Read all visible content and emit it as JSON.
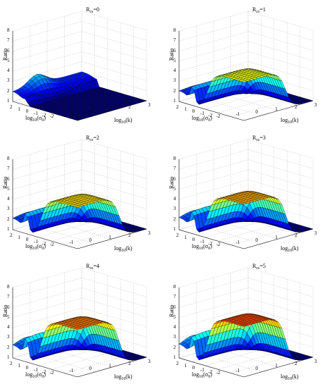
{
  "chart_data": [
    {
      "type": "surface",
      "title": "R_cs=0",
      "title_base": "R",
      "title_sub": "cs",
      "title_value": "=0",
      "cs": 0,
      "zlabel": "Ratio",
      "xlabel_base": "log",
      "xlabel_sub": "10",
      "xlabel_arg": "(σ",
      "xlabel_arg_sub": "0",
      "xlabel_end": ")",
      "klabel_base": "log",
      "klabel_sub": "10",
      "klabel_arg": "(k)",
      "zticks": [
        "1",
        "2",
        "3",
        "4",
        "5",
        "6",
        "7",
        "8"
      ],
      "sigma_ticks": [
        "2",
        "1",
        "0",
        "-1",
        "-2"
      ],
      "k_ticks": [
        "-2",
        "-1",
        "0",
        "1",
        "2",
        "3"
      ],
      "zlim": [
        1,
        8
      ],
      "sigma_lim": [
        -2,
        2
      ],
      "k_lim": [
        -2,
        3
      ],
      "grid": true,
      "colormap": "jet"
    },
    {
      "type": "surface",
      "title": "R_cs=1",
      "title_base": "R",
      "title_sub": "cs",
      "title_value": "=1",
      "cs": 1,
      "zlabel": "Ratio",
      "xlabel_base": "log",
      "xlabel_sub": "10",
      "xlabel_arg": "(σ",
      "xlabel_arg_sub": "0",
      "xlabel_end": ")",
      "klabel_base": "log",
      "klabel_sub": "10",
      "klabel_arg": "(k)",
      "zticks": [
        "1",
        "2",
        "3",
        "4",
        "5",
        "6",
        "7",
        "8"
      ],
      "sigma_ticks": [
        "2",
        "1",
        "0",
        "-1",
        "-2"
      ],
      "k_ticks": [
        "-2",
        "-1",
        "0",
        "1",
        "2",
        "3"
      ],
      "zlim": [
        1,
        8
      ],
      "sigma_lim": [
        -2,
        2
      ],
      "k_lim": [
        -2,
        3
      ],
      "grid": true,
      "colormap": "jet"
    },
    {
      "type": "surface",
      "title": "R_cs=2",
      "title_base": "R",
      "title_sub": "cs",
      "title_value": "=2",
      "cs": 2,
      "zlabel": "Ratio",
      "xlabel_base": "log",
      "xlabel_sub": "10",
      "xlabel_arg": "(σ",
      "xlabel_arg_sub": "0",
      "xlabel_end": ")",
      "klabel_base": "log",
      "klabel_sub": "10",
      "klabel_arg": "(k)",
      "zticks": [
        "1",
        "2",
        "3",
        "4",
        "5",
        "6",
        "7",
        "8"
      ],
      "sigma_ticks": [
        "2",
        "1",
        "0",
        "-1",
        "-2"
      ],
      "k_ticks": [
        "-2",
        "-1",
        "0",
        "1",
        "2",
        "3"
      ],
      "zlim": [
        1,
        8
      ],
      "sigma_lim": [
        -2,
        2
      ],
      "k_lim": [
        -2,
        3
      ],
      "grid": true,
      "colormap": "jet"
    },
    {
      "type": "surface",
      "title": "R_cs=3",
      "title_base": "R",
      "title_sub": "cs",
      "title_value": "=3",
      "cs": 3,
      "zlabel": "Ratio",
      "xlabel_base": "log",
      "xlabel_sub": "10",
      "xlabel_arg": "(σ",
      "xlabel_arg_sub": "0",
      "xlabel_end": ")",
      "klabel_base": "log",
      "klabel_sub": "10",
      "klabel_arg": "(k)",
      "zticks": [
        "1",
        "2",
        "3",
        "4",
        "5",
        "6",
        "7",
        "8"
      ],
      "sigma_ticks": [
        "2",
        "1",
        "0",
        "-1",
        "-2"
      ],
      "k_ticks": [
        "-2",
        "-1",
        "0",
        "1",
        "2",
        "3"
      ],
      "zlim": [
        1,
        8
      ],
      "sigma_lim": [
        -2,
        2
      ],
      "k_lim": [
        -2,
        3
      ],
      "grid": true,
      "colormap": "jet"
    },
    {
      "type": "surface",
      "title": "R_cs=4",
      "title_base": "R",
      "title_sub": "cs",
      "title_value": "=4",
      "cs": 4,
      "zlabel": "Ratio",
      "xlabel_base": "log",
      "xlabel_sub": "10",
      "xlabel_arg": "(σ",
      "xlabel_arg_sub": "0",
      "xlabel_end": ")",
      "klabel_base": "log",
      "klabel_sub": "10",
      "klabel_arg": "(k)",
      "zticks": [
        "1",
        "2",
        "3",
        "4",
        "5",
        "6",
        "7",
        "8"
      ],
      "sigma_ticks": [
        "2",
        "1",
        "0",
        "-1",
        "-2"
      ],
      "k_ticks": [
        "-2",
        "-1",
        "0",
        "1",
        "2",
        "3"
      ],
      "zlim": [
        1,
        8
      ],
      "sigma_lim": [
        -2,
        2
      ],
      "k_lim": [
        -2,
        3
      ],
      "grid": true,
      "colormap": "jet"
    },
    {
      "type": "surface",
      "title": "R_cs=5",
      "title_base": "R",
      "title_sub": "cs",
      "title_value": "=5",
      "cs": 5,
      "zlabel": "Ratio",
      "xlabel_base": "log",
      "xlabel_sub": "10",
      "xlabel_arg": "(σ",
      "xlabel_arg_sub": "0",
      "xlabel_end": ")",
      "klabel_base": "log",
      "klabel_sub": "10",
      "klabel_arg": "(k)",
      "zticks": [
        "1",
        "2",
        "3",
        "4",
        "5",
        "6",
        "7",
        "8"
      ],
      "sigma_ticks": [
        "2",
        "1",
        "0",
        "-1",
        "-2"
      ],
      "k_ticks": [
        "-2",
        "-1",
        "0",
        "1",
        "2",
        "3"
      ],
      "zlim": [
        1,
        8
      ],
      "sigma_lim": [
        -2,
        2
      ],
      "k_lim": [
        -2,
        3
      ],
      "grid": true,
      "colormap": "jet"
    }
  ],
  "colors": {
    "edge": "#000000",
    "grid": "#bbbbbb",
    "axis": "#000000"
  }
}
